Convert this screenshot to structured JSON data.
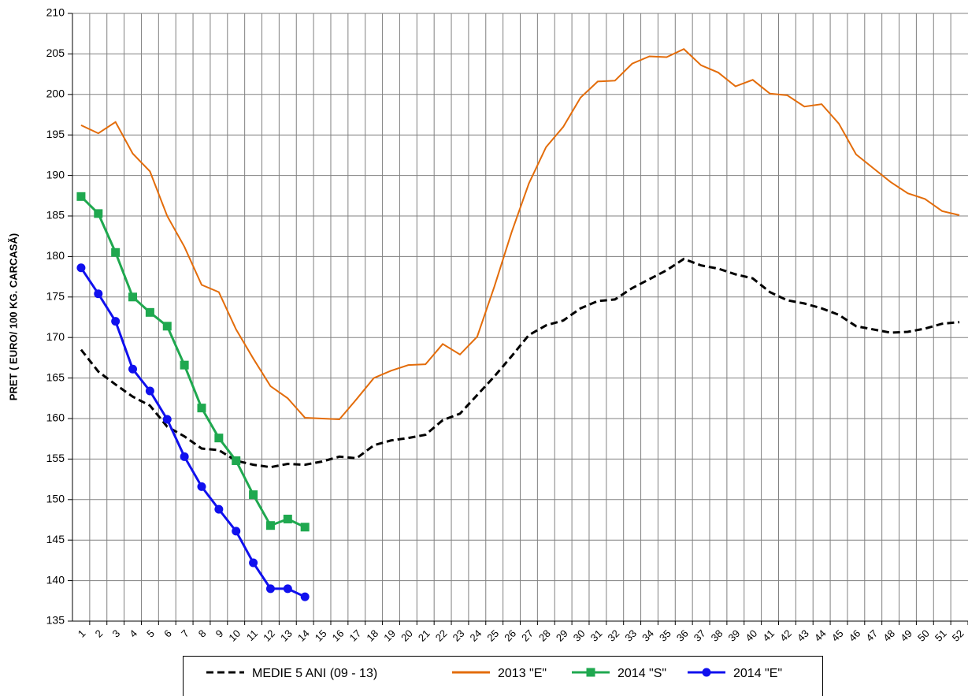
{
  "chart_data": {
    "type": "line",
    "y_label": "PRET ( EURO/ 100 KG. CARCASĂ)",
    "categories": [
      1,
      2,
      3,
      4,
      5,
      6,
      7,
      8,
      9,
      10,
      11,
      12,
      13,
      14,
      15,
      16,
      17,
      18,
      19,
      20,
      21,
      22,
      23,
      24,
      25,
      26,
      27,
      28,
      29,
      30,
      31,
      32,
      33,
      34,
      35,
      36,
      37,
      38,
      39,
      40,
      41,
      42,
      43,
      44,
      45,
      46,
      47,
      48,
      49,
      50,
      51,
      52
    ],
    "ylim": [
      135,
      210
    ],
    "yticks": [
      135,
      140,
      145,
      150,
      155,
      160,
      165,
      170,
      175,
      180,
      185,
      190,
      195,
      200,
      205,
      210
    ],
    "grid": true,
    "legend": "bottom",
    "series": [
      {
        "name": "MEDIE 5 ANI (09 - 13)",
        "color": "#000000",
        "dashed": true,
        "marker": null,
        "values": [
          168.5,
          165.8,
          164.2,
          162.7,
          161.6,
          159.0,
          157.8,
          156.3,
          156.1,
          154.8,
          154.3,
          154.0,
          154.4,
          154.3,
          154.7,
          155.3,
          155.1,
          156.7,
          157.3,
          157.6,
          158.0,
          159.8,
          160.6,
          162.9,
          165.2,
          167.7,
          170.3,
          171.5,
          172.1,
          173.6,
          174.5,
          174.7,
          176.1,
          177.2,
          178.3,
          179.7,
          178.9,
          178.5,
          177.8,
          177.3,
          175.6,
          174.6,
          174.2,
          173.6,
          172.8,
          171.4,
          171.0,
          170.6,
          170.7,
          171.1,
          171.7,
          171.9
        ]
      },
      {
        "name": "2013 \"E\"",
        "color": "#e36c0a",
        "dashed": false,
        "marker": null,
        "values": [
          196.2,
          195.2,
          196.6,
          192.7,
          190.5,
          185.0,
          181.2,
          176.5,
          175.6,
          171.0,
          167.4,
          164.0,
          162.5,
          160.1,
          160.0,
          159.9,
          162.4,
          165.0,
          165.9,
          166.6,
          166.7,
          169.2,
          167.9,
          170.1,
          176.3,
          183.0,
          189.0,
          193.5,
          196.0,
          199.6,
          201.6,
          201.7,
          203.8,
          204.7,
          204.6,
          205.6,
          203.6,
          202.7,
          201.0,
          201.8,
          200.1,
          199.9,
          198.5,
          198.8,
          196.4,
          192.6,
          190.9,
          189.2,
          187.8,
          187.1,
          185.6,
          185.1
        ]
      },
      {
        "name": "2014 \"S\"",
        "color": "#1fa84f",
        "dashed": false,
        "marker": "square",
        "values": [
          187.4,
          185.3,
          180.5,
          175.0,
          173.1,
          171.4,
          166.6,
          161.3,
          157.6,
          154.8,
          150.6,
          146.8,
          147.6,
          146.6,
          null,
          null,
          null,
          null,
          null,
          null,
          null,
          null,
          null,
          null,
          null,
          null,
          null,
          null,
          null,
          null,
          null,
          null,
          null,
          null,
          null,
          null,
          null,
          null,
          null,
          null,
          null,
          null,
          null,
          null,
          null,
          null,
          null,
          null,
          null,
          null,
          null,
          null
        ]
      },
      {
        "name": "2014 \"E\"",
        "color": "#1010ee",
        "dashed": false,
        "marker": "circle",
        "values": [
          178.6,
          175.4,
          172.0,
          166.1,
          163.4,
          159.9,
          155.3,
          151.6,
          148.8,
          146.1,
          142.2,
          139.0,
          139.0,
          138.0,
          null,
          null,
          null,
          null,
          null,
          null,
          null,
          null,
          null,
          null,
          null,
          null,
          null,
          null,
          null,
          null,
          null,
          null,
          null,
          null,
          null,
          null,
          null,
          null,
          null,
          null,
          null,
          null,
          null,
          null,
          null,
          null,
          null,
          null,
          null,
          null,
          null,
          null
        ]
      }
    ]
  }
}
